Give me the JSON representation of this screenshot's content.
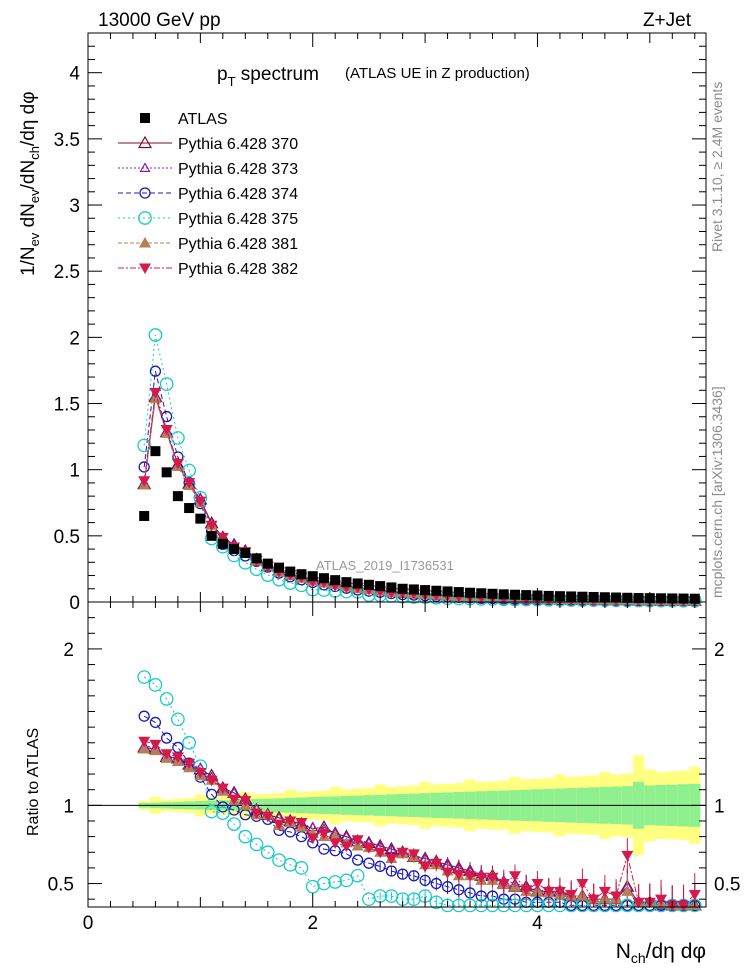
{
  "header": {
    "left": "13000 GeV pp",
    "right": "Z+Jet"
  },
  "side_text": {
    "rivet": "Rivet 3.1.10, ≥ 2.4M events",
    "mcplots": "mcplots.cern.ch [arXiv:1306.3436]"
  },
  "chart_data": {
    "type": "scatter",
    "title_main": "p",
    "title_sub": "T",
    "title_tail": " spectrum",
    "subtitle": "(ATLAS UE in Z production)",
    "ylabel": "1/N_ev dN_ev/dN_ch/dη dφ",
    "ylabel_parts": {
      "a": "1/N",
      "a_sub": "ev",
      "b": " dN",
      "b_sub": "ev",
      "c": "/dN",
      "c_sub": "ch",
      "d": "/dη dφ"
    },
    "xlabel_parts": {
      "a": "N",
      "a_sub": "ch",
      "b": "/dη dφ"
    },
    "ratio_ylabel": "Ratio to ATLAS",
    "watermark": "ATLAS_2019_I1736531",
    "xlim": [
      0,
      5.5
    ],
    "ylim": [
      0,
      4.3
    ],
    "ratio_ylim": [
      0.35,
      2.3
    ],
    "x_ticks": [
      "0",
      "2",
      "4"
    ],
    "y_ticks": [
      "0",
      "0.5",
      "1",
      "1.5",
      "2",
      "2.5",
      "3",
      "3.5",
      "4"
    ],
    "ratio_ticks": [
      "0.5",
      "1",
      "2"
    ],
    "legend_position": "top-left",
    "x": [
      0.5,
      0.6,
      0.7,
      0.8,
      0.9,
      1.0,
      1.1,
      1.2,
      1.3,
      1.4,
      1.5,
      1.6,
      1.7,
      1.8,
      1.9,
      2.0,
      2.1,
      2.2,
      2.3,
      2.4,
      2.5,
      2.6,
      2.7,
      2.8,
      2.9,
      3.0,
      3.1,
      3.2,
      3.3,
      3.4,
      3.5,
      3.6,
      3.7,
      3.8,
      3.9,
      4.0,
      4.1,
      4.2,
      4.3,
      4.4,
      4.5,
      4.6,
      4.7,
      4.8,
      4.9,
      5.0,
      5.1,
      5.2,
      5.3,
      5.4
    ],
    "atlas": {
      "name": "ATLAS",
      "values": [
        0.65,
        1.14,
        0.98,
        0.8,
        0.71,
        0.63,
        0.5,
        0.44,
        0.4,
        0.37,
        0.33,
        0.29,
        0.26,
        0.23,
        0.21,
        0.195,
        0.18,
        0.165,
        0.15,
        0.14,
        0.13,
        0.12,
        0.11,
        0.1,
        0.095,
        0.09,
        0.085,
        0.08,
        0.075,
        0.07,
        0.066,
        0.062,
        0.058,
        0.055,
        0.052,
        0.049,
        0.046,
        0.044,
        0.042,
        0.04,
        0.038,
        0.036,
        0.034,
        0.032,
        0.03,
        0.029,
        0.028,
        0.027,
        0.026,
        0.025
      ],
      "color": "#000000"
    },
    "series": [
      {
        "name": "Pythia 6.428 370",
        "color": "#7a0f2a",
        "dash": "",
        "marker": "triangle-open",
        "ratio": [
          1.37,
          1.36,
          1.31,
          1.3,
          1.26,
          1.23,
          1.19,
          1.11,
          1.08,
          1.04,
          0.97,
          0.94,
          0.92,
          0.9,
          0.88,
          0.85,
          0.86,
          0.82,
          0.8,
          0.77,
          0.76,
          0.74,
          0.72,
          0.7,
          0.67,
          0.66,
          0.64,
          0.62,
          0.6,
          0.58,
          0.55,
          0.55,
          0.5,
          0.48,
          0.48,
          0.45,
          0.45,
          0.45,
          0.42,
          0.42,
          0.4,
          0.4,
          0.4,
          0.48,
          0.38,
          0.38,
          0.36,
          0.36,
          0.36,
          0.36
        ]
      },
      {
        "name": "Pythia 6.428 373",
        "color": "#8e1aa8",
        "dash": "2,2",
        "marker": "triangle-open-small",
        "ratio": [
          1.38,
          1.37,
          1.32,
          1.3,
          1.26,
          1.24,
          1.18,
          1.11,
          1.08,
          1.03,
          0.98,
          0.94,
          0.92,
          0.9,
          0.88,
          0.86,
          0.85,
          0.82,
          0.8,
          0.78,
          0.76,
          0.74,
          0.72,
          0.7,
          0.68,
          0.66,
          0.64,
          0.62,
          0.6,
          0.58,
          0.56,
          0.54,
          0.52,
          0.5,
          0.48,
          0.46,
          0.45,
          0.44,
          0.42,
          0.42,
          0.4,
          0.4,
          0.4,
          0.48,
          0.38,
          0.38,
          0.36,
          0.36,
          0.36,
          0.36
        ]
      },
      {
        "name": "Pythia 6.428 374",
        "color": "#1a1ab8",
        "dash": "5,3",
        "marker": "circle-open",
        "ratio": [
          1.57,
          1.53,
          1.43,
          1.37,
          1.27,
          1.18,
          1.07,
          0.99,
          0.97,
          0.94,
          0.93,
          0.91,
          0.84,
          0.83,
          0.8,
          0.76,
          0.72,
          0.71,
          0.69,
          0.65,
          0.63,
          0.61,
          0.58,
          0.56,
          0.55,
          0.52,
          0.5,
          0.48,
          0.46,
          0.44,
          0.42,
          0.42,
          0.4,
          0.4,
          0.38,
          0.38,
          0.38,
          0.38,
          0.36,
          0.36,
          0.36,
          0.36,
          0.36,
          0.36,
          0.36,
          0.36,
          0.36,
          0.36,
          0.36,
          0.36
        ]
      },
      {
        "name": "Pythia 6.428 375",
        "color": "#19c9c9",
        "dash": "2,3",
        "marker": "circle-open-large",
        "ratio": [
          1.82,
          1.77,
          1.68,
          1.55,
          1.4,
          1.25,
          0.96,
          0.95,
          0.88,
          0.8,
          0.75,
          0.7,
          0.65,
          0.62,
          0.6,
          0.48,
          0.5,
          0.51,
          0.52,
          0.55,
          0.4,
          0.42,
          0.42,
          0.4,
          0.4,
          0.42,
          0.38,
          0.36,
          0.36,
          0.36,
          0.36,
          0.36,
          0.36,
          0.36,
          0.36,
          0.36,
          0.36,
          0.36,
          0.36,
          0.36,
          0.36,
          0.36,
          0.36,
          0.36,
          0.36,
          0.36,
          0.36,
          0.36,
          0.36,
          0.36
        ]
      },
      {
        "name": "Pythia 6.428 381",
        "color": "#b3805a",
        "dash": "4,2",
        "marker": "triangle-filled",
        "ratio": [
          1.36,
          1.35,
          1.3,
          1.28,
          1.24,
          1.19,
          1.16,
          1.09,
          1.03,
          1.0,
          0.94,
          0.94,
          0.87,
          0.89,
          0.86,
          0.82,
          0.8,
          0.8,
          0.76,
          0.74,
          0.73,
          0.7,
          0.66,
          0.69,
          0.67,
          0.62,
          0.62,
          0.58,
          0.55,
          0.55,
          0.52,
          0.52,
          0.5,
          0.48,
          0.45,
          0.45,
          0.44,
          0.43,
          0.42,
          0.42,
          0.4,
          0.4,
          0.4,
          0.45,
          0.38,
          0.38,
          0.37,
          0.36,
          0.36,
          0.36
        ]
      },
      {
        "name": "Pythia 6.428 382",
        "color": "#d41a4a",
        "dash": "6,2,2,2",
        "marker": "triangle-down-filled",
        "ratio": [
          1.41,
          1.39,
          1.33,
          1.31,
          1.27,
          1.21,
          1.16,
          1.11,
          1.04,
          1.03,
          0.95,
          0.93,
          0.88,
          0.9,
          0.89,
          0.79,
          0.82,
          0.76,
          0.74,
          0.78,
          0.73,
          0.7,
          0.66,
          0.7,
          0.69,
          0.61,
          0.63,
          0.57,
          0.56,
          0.55,
          0.54,
          0.54,
          0.5,
          0.55,
          0.46,
          0.5,
          0.45,
          0.45,
          0.43,
          0.5,
          0.4,
          0.45,
          0.42,
          0.68,
          0.38,
          0.38,
          0.4,
          0.36,
          0.36,
          0.43
        ]
      }
    ]
  }
}
